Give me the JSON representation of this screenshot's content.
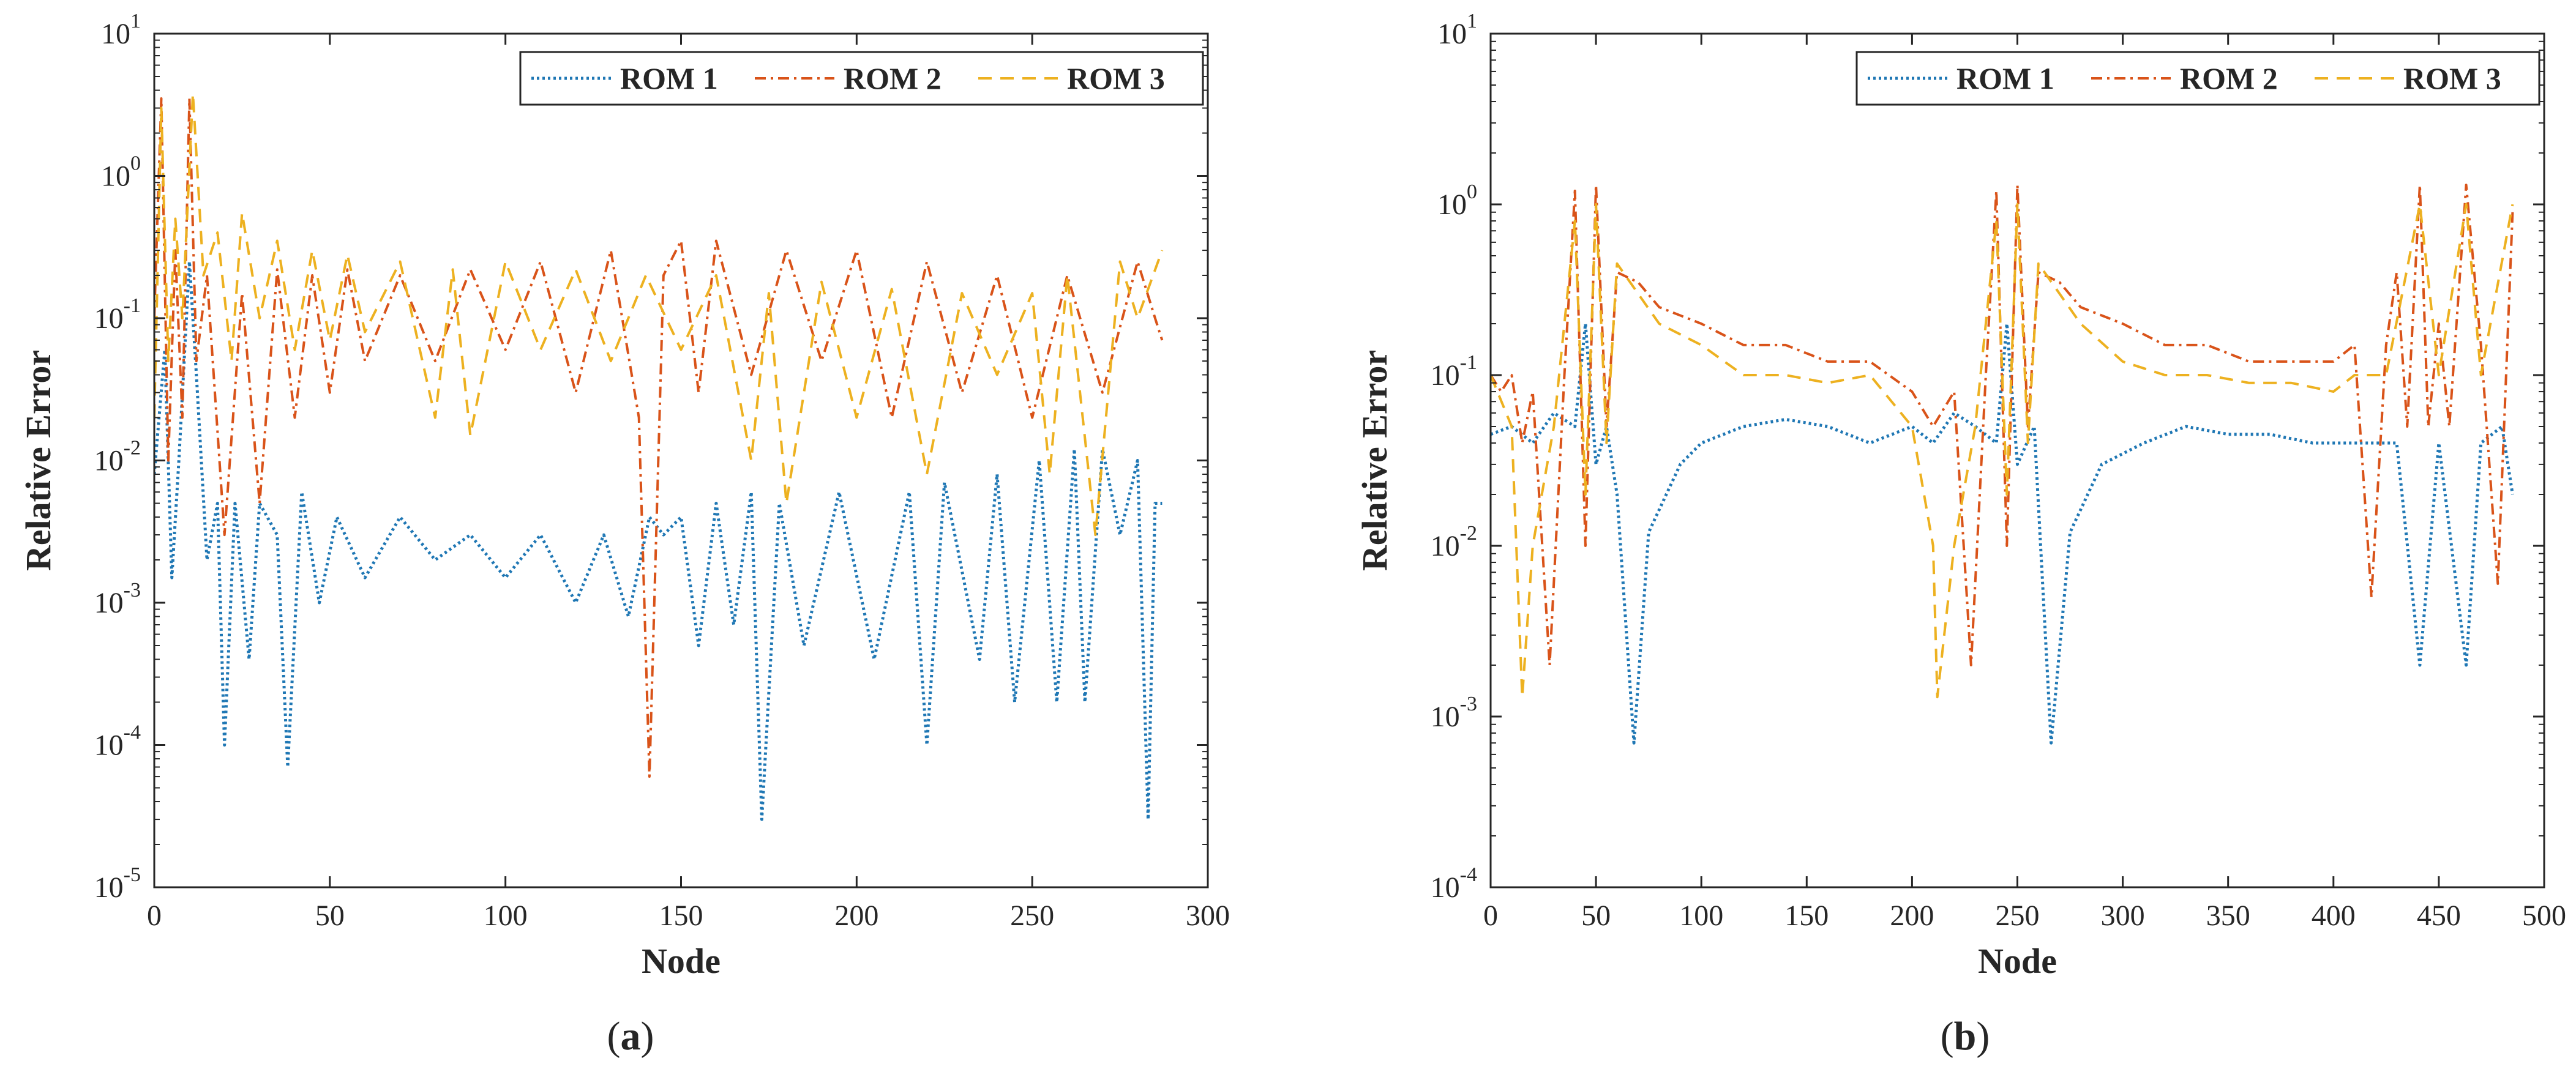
{
  "figure": {
    "caption_open": "(",
    "caption_close": ")",
    "colors": {
      "rom1": "#1f77b4",
      "rom2": "#d95319",
      "rom3": "#edb120",
      "axis": "#262626"
    }
  },
  "chart_data": [
    {
      "type": "line",
      "panel_label": "a",
      "xlabel": "Node",
      "ylabel": "Relative Error",
      "yscale": "log",
      "xlim": [
        0,
        300
      ],
      "ylim": [
        1e-05,
        10
      ],
      "xticks": [
        0,
        50,
        100,
        150,
        200,
        250,
        300
      ],
      "yticks": [
        {
          "value": 1e-05,
          "base": "10",
          "exp": "-5"
        },
        {
          "value": 0.0001,
          "base": "10",
          "exp": "-4"
        },
        {
          "value": 0.001,
          "base": "10",
          "exp": "-3"
        },
        {
          "value": 0.01,
          "base": "10",
          "exp": "-2"
        },
        {
          "value": 0.1,
          "base": "10",
          "exp": "-1"
        },
        {
          "value": 1,
          "base": "10",
          "exp": "0"
        },
        {
          "value": 10,
          "base": "10",
          "exp": "1"
        }
      ],
      "legend": {
        "location": "top-right",
        "entries": [
          "ROM 1",
          "ROM 2",
          "ROM 3"
        ]
      },
      "series": [
        {
          "name": "ROM 1",
          "style": "dotted",
          "x": [
            0,
            3,
            5,
            7,
            10,
            12,
            15,
            18,
            20,
            23,
            27,
            30,
            35,
            38,
            42,
            47,
            52,
            60,
            70,
            80,
            90,
            100,
            110,
            120,
            128,
            135,
            141,
            145,
            150,
            155,
            160,
            165,
            170,
            173,
            178,
            185,
            195,
            205,
            215,
            220,
            225,
            235,
            240,
            245,
            252,
            257,
            262,
            265,
            270,
            275,
            280,
            283,
            285,
            287
          ],
          "y": [
            0.008,
            0.06,
            0.0015,
            0.01,
            0.25,
            0.04,
            0.002,
            0.005,
            0.0001,
            0.005,
            0.0004,
            0.005,
            0.003,
            7e-05,
            0.006,
            0.001,
            0.004,
            0.0015,
            0.004,
            0.002,
            0.003,
            0.0015,
            0.003,
            0.001,
            0.003,
            0.0008,
            0.004,
            0.003,
            0.004,
            0.0005,
            0.005,
            0.0007,
            0.006,
            3e-05,
            0.005,
            0.0005,
            0.006,
            0.0004,
            0.006,
            0.0001,
            0.007,
            0.0004,
            0.008,
            0.0002,
            0.01,
            0.0002,
            0.012,
            0.0002,
            0.012,
            0.003,
            0.01,
            3e-05,
            0.005,
            0.005
          ]
        },
        {
          "name": "ROM 2",
          "style": "dashdot",
          "x": [
            0,
            2,
            4,
            6,
            8,
            10,
            12,
            15,
            20,
            25,
            30,
            35,
            40,
            45,
            50,
            55,
            60,
            70,
            80,
            90,
            100,
            110,
            120,
            130,
            138,
            141,
            145,
            150,
            155,
            160,
            170,
            180,
            190,
            200,
            210,
            220,
            230,
            240,
            250,
            260,
            270,
            280,
            285,
            287
          ],
          "y": [
            0.1,
            3.5,
            0.01,
            0.3,
            0.02,
            3.5,
            0.05,
            0.2,
            0.003,
            0.15,
            0.005,
            0.22,
            0.02,
            0.2,
            0.03,
            0.22,
            0.05,
            0.2,
            0.05,
            0.22,
            0.06,
            0.25,
            0.03,
            0.3,
            0.02,
            6e-05,
            0.2,
            0.35,
            0.03,
            0.35,
            0.04,
            0.3,
            0.05,
            0.3,
            0.02,
            0.25,
            0.03,
            0.2,
            0.02,
            0.2,
            0.03,
            0.25,
            0.1,
            0.07
          ]
        },
        {
          "name": "ROM 3",
          "style": "dashed",
          "x": [
            0,
            2,
            4,
            6,
            8,
            11,
            14,
            18,
            22,
            25,
            30,
            35,
            40,
            45,
            50,
            55,
            60,
            70,
            75,
            80,
            85,
            90,
            100,
            110,
            120,
            130,
            140,
            150,
            160,
            170,
            175,
            180,
            190,
            200,
            210,
            220,
            230,
            240,
            250,
            255,
            260,
            268,
            275,
            280,
            287
          ],
          "y": [
            0.02,
            3.0,
            0.05,
            0.5,
            0.1,
            3.8,
            0.2,
            0.4,
            0.05,
            0.55,
            0.1,
            0.35,
            0.06,
            0.3,
            0.07,
            0.28,
            0.08,
            0.25,
            0.07,
            0.02,
            0.22,
            0.015,
            0.25,
            0.06,
            0.22,
            0.05,
            0.2,
            0.06,
            0.2,
            0.01,
            0.15,
            0.005,
            0.18,
            0.02,
            0.16,
            0.008,
            0.15,
            0.04,
            0.15,
            0.008,
            0.2,
            0.003,
            0.25,
            0.1,
            0.3
          ]
        }
      ]
    },
    {
      "type": "line",
      "panel_label": "b",
      "xlabel": "Node",
      "ylabel": "Relative Error",
      "yscale": "log",
      "xlim": [
        0,
        500
      ],
      "ylim": [
        0.0001,
        10
      ],
      "xticks": [
        0,
        50,
        100,
        150,
        200,
        250,
        300,
        350,
        400,
        450,
        500
      ],
      "yticks": [
        {
          "value": 0.0001,
          "base": "10",
          "exp": "-4"
        },
        {
          "value": 0.001,
          "base": "10",
          "exp": "-3"
        },
        {
          "value": 0.01,
          "base": "10",
          "exp": "-2"
        },
        {
          "value": 0.1,
          "base": "10",
          "exp": "-1"
        },
        {
          "value": 1,
          "base": "10",
          "exp": "0"
        },
        {
          "value": 10,
          "base": "10",
          "exp": "1"
        }
      ],
      "legend": {
        "location": "top-right",
        "entries": [
          "ROM 1",
          "ROM 2",
          "ROM 3"
        ]
      },
      "series": [
        {
          "name": "ROM 1",
          "style": "dotted",
          "x": [
            0,
            10,
            20,
            30,
            40,
            45,
            50,
            55,
            60,
            68,
            75,
            90,
            100,
            120,
            140,
            160,
            180,
            200,
            210,
            220,
            230,
            240,
            245,
            250,
            258,
            266,
            275,
            290,
            310,
            330,
            350,
            370,
            390,
            410,
            430,
            441,
            450,
            463,
            470,
            480,
            485
          ],
          "y": [
            0.045,
            0.05,
            0.04,
            0.06,
            0.05,
            0.2,
            0.03,
            0.05,
            0.02,
            0.0007,
            0.012,
            0.03,
            0.04,
            0.05,
            0.055,
            0.05,
            0.04,
            0.05,
            0.04,
            0.06,
            0.05,
            0.04,
            0.2,
            0.03,
            0.05,
            0.0007,
            0.012,
            0.03,
            0.04,
            0.05,
            0.045,
            0.045,
            0.04,
            0.04,
            0.04,
            0.002,
            0.04,
            0.002,
            0.04,
            0.05,
            0.02
          ]
        },
        {
          "name": "ROM 2",
          "style": "dashdot",
          "x": [
            0,
            5,
            10,
            15,
            20,
            28,
            35,
            40,
            45,
            50,
            55,
            60,
            70,
            80,
            100,
            120,
            140,
            160,
            180,
            200,
            210,
            220,
            228,
            235,
            240,
            245,
            250,
            255,
            260,
            270,
            280,
            300,
            320,
            340,
            360,
            380,
            400,
            410,
            418,
            425,
            430,
            435,
            441,
            445,
            450,
            455,
            463,
            470,
            478,
            485
          ],
          "y": [
            0.1,
            0.08,
            0.1,
            0.04,
            0.08,
            0.002,
            0.1,
            1.2,
            0.01,
            1.3,
            0.05,
            0.4,
            0.35,
            0.25,
            0.2,
            0.15,
            0.15,
            0.12,
            0.12,
            0.08,
            0.05,
            0.08,
            0.002,
            0.1,
            1.2,
            0.01,
            1.3,
            0.05,
            0.4,
            0.35,
            0.25,
            0.2,
            0.15,
            0.15,
            0.12,
            0.12,
            0.12,
            0.15,
            0.005,
            0.15,
            0.4,
            0.05,
            1.3,
            0.05,
            0.2,
            0.05,
            1.3,
            0.15,
            0.006,
            0.9
          ]
        },
        {
          "name": "ROM 3",
          "style": "dashed",
          "x": [
            0,
            10,
            15,
            20,
            30,
            40,
            45,
            50,
            55,
            60,
            70,
            80,
            100,
            120,
            140,
            160,
            180,
            200,
            210,
            212,
            220,
            230,
            240,
            245,
            250,
            255,
            260,
            270,
            280,
            300,
            320,
            340,
            360,
            380,
            400,
            410,
            425,
            441,
            450,
            463,
            470,
            485
          ],
          "y": [
            0.1,
            0.05,
            0.0013,
            0.01,
            0.05,
            0.8,
            0.02,
            1.0,
            0.04,
            0.45,
            0.3,
            0.2,
            0.15,
            0.1,
            0.1,
            0.09,
            0.1,
            0.05,
            0.01,
            0.0013,
            0.01,
            0.05,
            0.8,
            0.02,
            1.0,
            0.04,
            0.45,
            0.3,
            0.2,
            0.12,
            0.1,
            0.1,
            0.09,
            0.09,
            0.08,
            0.1,
            0.1,
            1.0,
            0.1,
            1.0,
            0.1,
            1.0
          ]
        }
      ]
    }
  ]
}
